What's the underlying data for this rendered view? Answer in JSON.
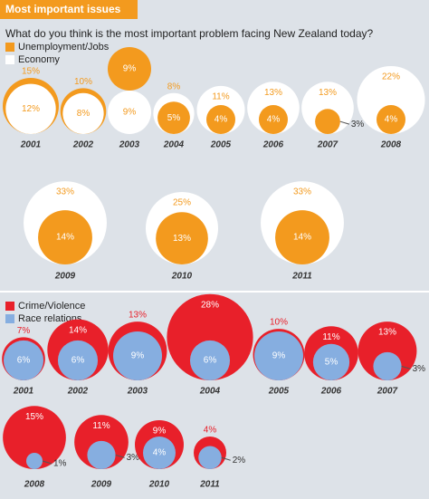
{
  "header": {
    "title": "Most important issues"
  },
  "chart_data": [
    {
      "type": "bubble",
      "title": "What do you think is the most important problem facing New Zealand today?",
      "categories": [
        "2001",
        "2002",
        "2003",
        "2004",
        "2005",
        "2006",
        "2007",
        "2008",
        "2009",
        "2010",
        "2011"
      ],
      "series": [
        {
          "name": "Unemployment/Jobs",
          "color": "#f39a1e",
          "values": [
            15,
            10,
            9,
            5,
            4,
            4,
            3,
            4,
            14,
            13,
            14
          ],
          "value_labels": [
            "15%",
            "10%",
            "9%",
            "5%",
            "4%",
            "4%",
            "3%",
            "4%",
            "14%",
            "13%",
            "14%"
          ]
        },
        {
          "name": "Economy",
          "color": "#ffffff",
          "values": [
            12,
            8,
            9,
            8,
            11,
            13,
            13,
            22,
            33,
            25,
            33
          ],
          "value_labels": [
            "12%",
            "8%",
            "9%",
            "8%",
            "11%",
            "13%",
            "13%",
            "22%",
            "33%",
            "25%",
            "33%"
          ]
        }
      ]
    },
    {
      "type": "bubble",
      "categories": [
        "2001",
        "2002",
        "2003",
        "2004",
        "2005",
        "2006",
        "2007",
        "2008",
        "2009",
        "2010",
        "2011"
      ],
      "series": [
        {
          "name": "Crime/Violence",
          "color": "#e8202a",
          "values": [
            7,
            14,
            13,
            28,
            10,
            11,
            13,
            15,
            11,
            9,
            4
          ],
          "value_labels": [
            "7%",
            "14%",
            "13%",
            "28%",
            "10%",
            "11%",
            "13%",
            "15%",
            "11%",
            "9%",
            "4%"
          ]
        },
        {
          "name": "Race relations",
          "color": "#86aee0",
          "values": [
            6,
            6,
            9,
            6,
            9,
            5,
            3,
            1,
            3,
            4,
            2
          ],
          "value_labels": [
            "6%",
            "6%",
            "9%",
            "6%",
            "9%",
            "5%",
            "3%",
            "1%",
            "3%",
            "4%",
            "2%"
          ]
        }
      ]
    }
  ]
}
